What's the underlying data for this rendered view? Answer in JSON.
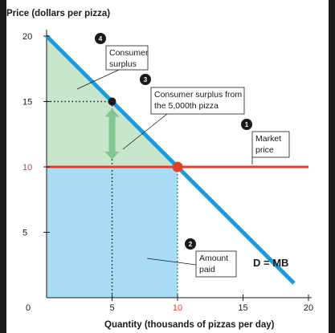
{
  "chart_data": {
    "type": "line",
    "ylabel": "Price (dollars per pizza)",
    "xlabel": "Quantity (thousands of pizzas per day)",
    "xlim": [
      0,
      20
    ],
    "ylim": [
      0,
      20
    ],
    "x_ticks": [
      "0",
      "5",
      "10",
      "15",
      "20"
    ],
    "y_ticks": [
      "5",
      "10",
      "15",
      "20"
    ],
    "series": [
      {
        "name": "D = MB",
        "color": "#1f9ad6",
        "points": [
          [
            0,
            20
          ],
          [
            20,
            0
          ]
        ]
      },
      {
        "name": "Market price",
        "color": "#e0402a",
        "points": [
          [
            0,
            10
          ],
          [
            20,
            10
          ]
        ]
      }
    ],
    "points": [
      {
        "x": 5,
        "y": 15,
        "color": "#1a1a1a"
      },
      {
        "x": 10,
        "y": 10,
        "color": "#e0402a"
      }
    ],
    "regions": [
      {
        "label": "Consumer surplus",
        "color": "#c8e6cc"
      },
      {
        "label": "Amount paid",
        "color": "#a8dcf4"
      }
    ],
    "callouts": [
      {
        "number": "1",
        "lines": [
          "Market",
          "price"
        ]
      },
      {
        "number": "2",
        "lines": [
          "Amount",
          "paid"
        ]
      },
      {
        "number": "3",
        "lines": [
          "Consumer surplus from",
          "the 5,000th pizza"
        ]
      },
      {
        "number": "4",
        "lines": [
          "Consumer",
          "surplus"
        ]
      }
    ],
    "curve_label": "D = MB",
    "colors": {
      "demand": "#1f9ad6",
      "price": "#e0402a",
      "surplus": "#c8e6cc",
      "paid": "#a8dcf4",
      "arrow": "#7fc68f"
    }
  }
}
